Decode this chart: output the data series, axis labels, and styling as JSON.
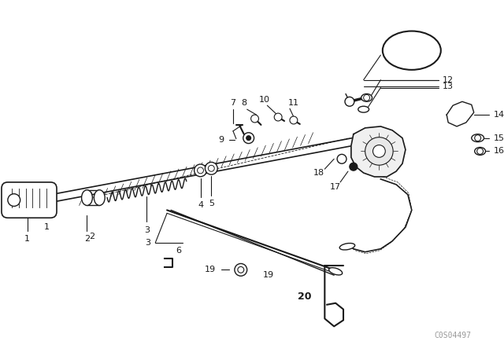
{
  "bg_color": "#ffffff",
  "line_color": "#1a1a1a",
  "fig_width": 6.4,
  "fig_height": 4.48,
  "dpi": 100,
  "watermark": "C0S04497",
  "watermark_color": "#999999"
}
